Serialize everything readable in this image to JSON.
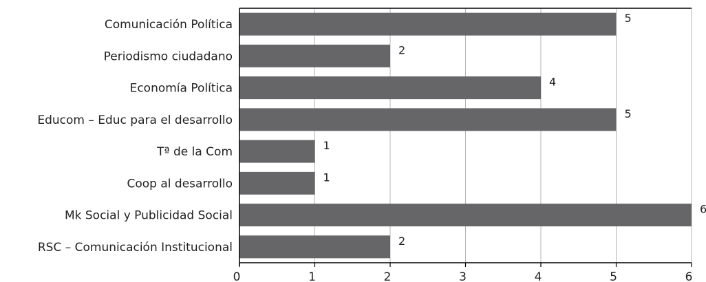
{
  "chart_data": {
    "type": "bar",
    "orientation": "horizontal",
    "categories": [
      "Comunicación Política",
      "Periodismo ciudadano",
      "Economía Política",
      "Educom – Educ para el desarrollo",
      "Tª de la Com",
      "Coop al desarrollo",
      "Mk Social y Publicidad Social",
      "RSC – Comunicación Institucional"
    ],
    "values": [
      5,
      2,
      4,
      5,
      1,
      1,
      6,
      2
    ],
    "xlim": [
      0,
      6
    ],
    "x_ticks": [
      "0",
      "1",
      "2",
      "3",
      "4",
      "5",
      "6"
    ],
    "grid": "vertical",
    "data_labels": true,
    "bar_color": "#666669",
    "grid_color": "#b5b5b5",
    "axis_color": "#000000",
    "title": "",
    "xlabel": "",
    "ylabel": ""
  }
}
